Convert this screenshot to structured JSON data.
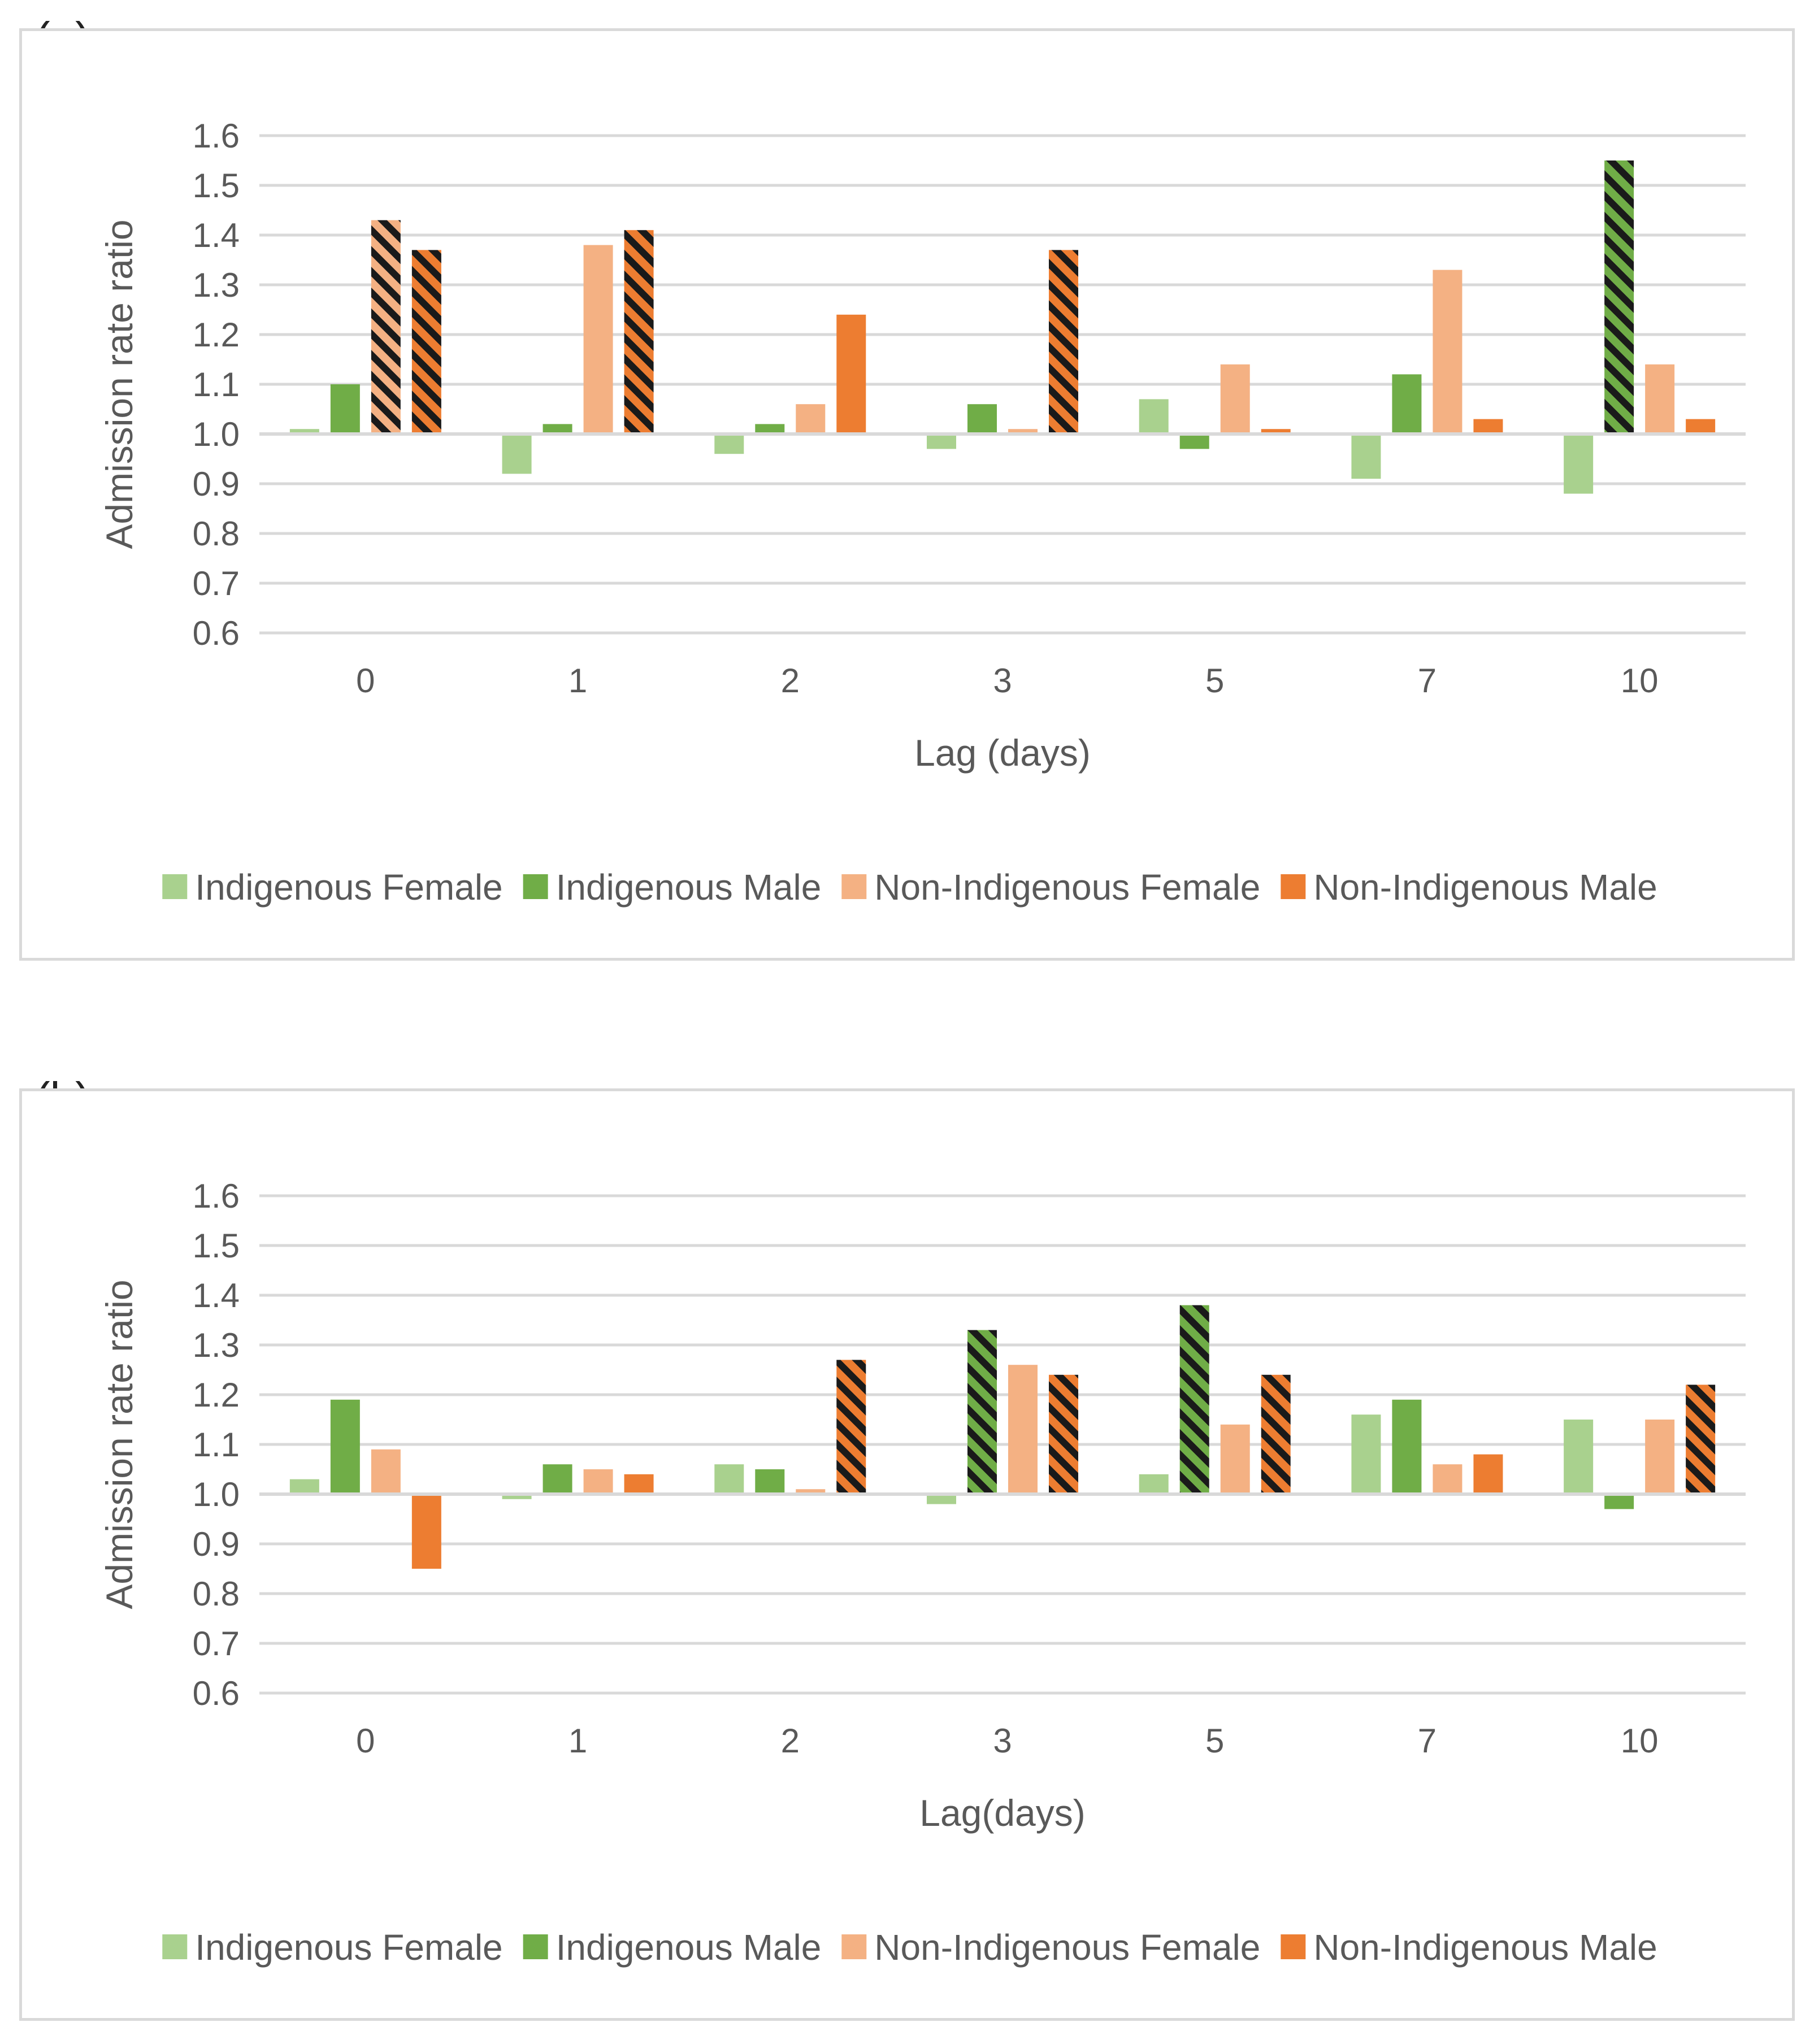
{
  "colors": {
    "indigenous_female": "#a9d18e",
    "indigenous_male": "#70ad47",
    "non_indigenous_female": "#f4b183",
    "non_indigenous_male": "#ed7d31",
    "grid": "#d9d9d9",
    "text": "#595959",
    "hatch": "#1a1a1a"
  },
  "chart_data": [
    {
      "panel_label": "(a)",
      "type": "bar",
      "baseline": 1.0,
      "categories": [
        "0",
        "1",
        "2",
        "3",
        "5",
        "7",
        "10"
      ],
      "xlabel": "Lag (days)",
      "ylabel": "Admission rate ratio",
      "ylim": [
        0.6,
        1.6
      ],
      "yticks": [
        "0.6",
        "0.7",
        "0.8",
        "0.9",
        "1.0",
        "1.1",
        "1.2",
        "1.3",
        "1.4",
        "1.5",
        "1.6"
      ],
      "grid": true,
      "legend_position": "bottom",
      "series": [
        {
          "name": "Indigenous Female",
          "color_key": "indigenous_female",
          "values": [
            1.01,
            0.92,
            0.96,
            0.97,
            1.07,
            0.91,
            0.88
          ],
          "hatched": [
            false,
            false,
            false,
            false,
            false,
            false,
            false
          ]
        },
        {
          "name": "Indigenous Male",
          "color_key": "indigenous_male",
          "values": [
            1.1,
            1.02,
            1.02,
            1.06,
            0.97,
            1.12,
            1.55
          ],
          "hatched": [
            false,
            false,
            false,
            false,
            false,
            false,
            true
          ]
        },
        {
          "name": "Non-Indigenous Female",
          "color_key": "non_indigenous_female",
          "values": [
            1.43,
            1.38,
            1.06,
            1.01,
            1.14,
            1.33,
            1.14
          ],
          "hatched": [
            true,
            false,
            false,
            false,
            false,
            false,
            false
          ]
        },
        {
          "name": "Non-Indigenous Male",
          "color_key": "non_indigenous_male",
          "values": [
            1.37,
            1.41,
            1.24,
            1.37,
            1.01,
            1.03,
            1.03
          ],
          "hatched": [
            true,
            true,
            false,
            true,
            false,
            false,
            false
          ]
        }
      ]
    },
    {
      "panel_label": "(b)",
      "type": "bar",
      "baseline": 1.0,
      "categories": [
        "0",
        "1",
        "2",
        "3",
        "5",
        "7",
        "10"
      ],
      "xlabel": "Lag(days)",
      "ylabel": "Admission rate ratio",
      "ylim": [
        0.6,
        1.6
      ],
      "yticks": [
        "0.6",
        "0.7",
        "0.8",
        "0.9",
        "1.0",
        "1.1",
        "1.2",
        "1.3",
        "1.4",
        "1.5",
        "1.6"
      ],
      "grid": true,
      "legend_position": "bottom",
      "series": [
        {
          "name": "Indigenous Female",
          "color_key": "indigenous_female",
          "values": [
            1.03,
            0.99,
            1.06,
            0.98,
            1.04,
            1.16,
            1.15
          ],
          "hatched": [
            false,
            false,
            false,
            false,
            false,
            false,
            false
          ]
        },
        {
          "name": "Indigenous Male",
          "color_key": "indigenous_male",
          "values": [
            1.19,
            1.06,
            1.05,
            1.33,
            1.38,
            1.19,
            0.97
          ],
          "hatched": [
            false,
            false,
            false,
            true,
            true,
            false,
            false
          ]
        },
        {
          "name": "Non-Indigenous Female",
          "color_key": "non_indigenous_female",
          "values": [
            1.09,
            1.05,
            1.01,
            1.26,
            1.14,
            1.06,
            1.15
          ],
          "hatched": [
            false,
            false,
            false,
            false,
            false,
            false,
            false
          ]
        },
        {
          "name": "Non-Indigenous Male",
          "color_key": "non_indigenous_male",
          "values": [
            0.85,
            1.04,
            1.27,
            1.24,
            1.24,
            1.08,
            1.22
          ],
          "hatched": [
            false,
            false,
            true,
            true,
            true,
            false,
            true
          ]
        }
      ]
    }
  ]
}
